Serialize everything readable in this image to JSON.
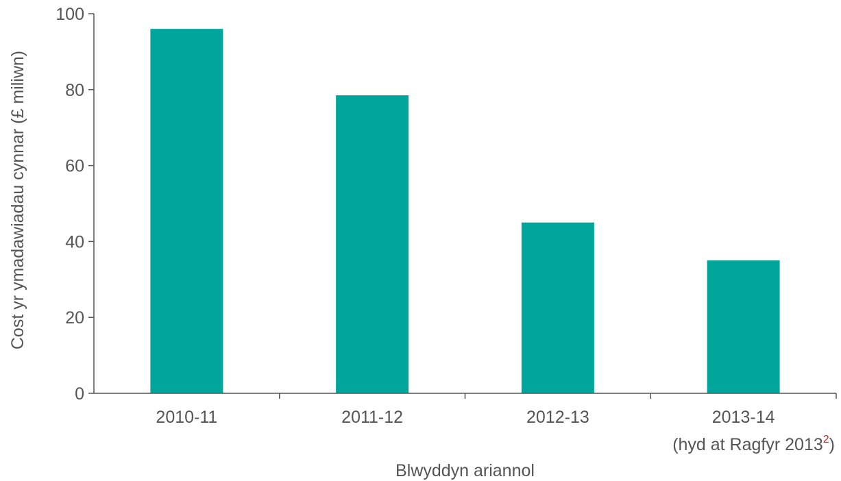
{
  "chart_data": {
    "type": "bar",
    "categories": [
      "2010-11",
      "2011-12",
      "2012-13",
      "2013-14"
    ],
    "category_notes": [
      "",
      "",
      "",
      "(hyd at Ragfyr 2013"
    ],
    "category_note_superscript": "2",
    "category_note_close": ")",
    "values": [
      96,
      78.5,
      45,
      35
    ],
    "xlabel": "Blwyddyn ariannol",
    "ylabel": "Cost yr ymadawiadau cynnar (£ miliwn)",
    "ylim": [
      0,
      100
    ],
    "yticks": [
      0,
      20,
      40,
      60,
      80,
      100
    ],
    "ytick_labels": [
      "0",
      "20",
      "40",
      "60",
      "80",
      "100"
    ],
    "bar_color": "#00a69c",
    "axis_color": "#555555",
    "grid": false,
    "legend": "none"
  }
}
